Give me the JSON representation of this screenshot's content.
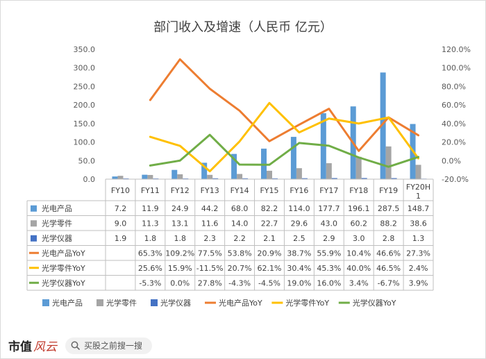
{
  "chart_data": {
    "type": "bar",
    "title": "部门收入及增速（人民币 亿元）",
    "categories": [
      "FY10",
      "FY11",
      "FY12",
      "FY13",
      "FY14",
      "FY15",
      "FY16",
      "FY17",
      "FY18",
      "FY19",
      "FY20H1"
    ],
    "category_labels": [
      "FY10",
      "FY11",
      "FY12",
      "FY13",
      "FY14",
      "FY15",
      "FY16",
      "FY17",
      "FY18",
      "FY19",
      "FY20H\n1"
    ],
    "left_axis": {
      "min": 0,
      "max": 350,
      "ticks": [
        "0.0",
        "50.0",
        "100.0",
        "150.0",
        "200.0",
        "250.0",
        "300.0",
        "350.0"
      ]
    },
    "right_axis": {
      "min": -20,
      "max": 120,
      "ticks": [
        "-20.0%",
        "0.0%",
        "20.0%",
        "40.0%",
        "60.0%",
        "80.0%",
        "100.0%",
        "120.0%"
      ]
    },
    "legend_position": "bottom",
    "bar_series": [
      {
        "name": "光电产品",
        "color": "#5b9bd5",
        "values": [
          7.2,
          11.9,
          24.9,
          44.2,
          68.0,
          82.2,
          114.0,
          177.7,
          196.1,
          287.5,
          148.7
        ],
        "labels": [
          "7.2",
          "11.9",
          "24.9",
          "44.2",
          "68.0",
          "82.2",
          "114.0",
          "177.7",
          "196.1",
          "287.5",
          "148.7"
        ]
      },
      {
        "name": "光学零件",
        "color": "#a5a5a5",
        "values": [
          9.0,
          11.3,
          13.1,
          11.6,
          14.0,
          22.7,
          29.6,
          43.0,
          60.2,
          88.2,
          38.6
        ],
        "labels": [
          "9.0",
          "11.3",
          "13.1",
          "11.6",
          "14.0",
          "22.7",
          "29.6",
          "43.0",
          "60.2",
          "88.2",
          "38.6"
        ]
      },
      {
        "name": "光学仪器",
        "color": "#4472c4",
        "values": [
          1.9,
          1.8,
          1.8,
          2.3,
          2.2,
          2.1,
          2.5,
          2.9,
          3.0,
          2.8,
          1.3
        ],
        "labels": [
          "1.9",
          "1.8",
          "1.8",
          "2.3",
          "2.2",
          "2.1",
          "2.5",
          "2.9",
          "3.0",
          "2.8",
          "1.3"
        ]
      }
    ],
    "line_series": [
      {
        "name": "光电产品YoY",
        "color": "#ed7d31",
        "values": [
          null,
          65.3,
          109.2,
          77.5,
          53.8,
          20.9,
          38.7,
          55.9,
          10.4,
          46.6,
          27.3
        ],
        "labels": [
          "",
          "65.3%",
          "109.2%",
          "77.5%",
          "53.8%",
          "20.9%",
          "38.7%",
          "55.9%",
          "10.4%",
          "46.6%",
          "27.3%"
        ]
      },
      {
        "name": "光学零件YoY",
        "color": "#ffc000",
        "values": [
          null,
          25.6,
          15.9,
          -11.5,
          20.7,
          62.1,
          30.4,
          45.3,
          40.0,
          46.5,
          2.4
        ],
        "labels": [
          "",
          "25.6%",
          "15.9%",
          "-11.5%",
          "20.7%",
          "62.1%",
          "30.4%",
          "45.3%",
          "40.0%",
          "46.5%",
          "2.4%"
        ]
      },
      {
        "name": "光学仪器YoY",
        "color": "#70ad47",
        "values": [
          null,
          -5.3,
          0.0,
          27.8,
          -4.3,
          -4.5,
          19.0,
          16.0,
          3.4,
          -6.7,
          3.9
        ],
        "labels": [
          "",
          "-5.3%",
          "0.0%",
          "27.8%",
          "-4.3%",
          "-4.5%",
          "19.0%",
          "16.0%",
          "3.4%",
          "-6.7%",
          "3.9%"
        ]
      }
    ]
  },
  "footer": {
    "brand_main": "市值",
    "brand_script": "风云",
    "search_placeholder": "买股之前搜一搜"
  },
  "icons": {
    "search": "search-icon"
  }
}
